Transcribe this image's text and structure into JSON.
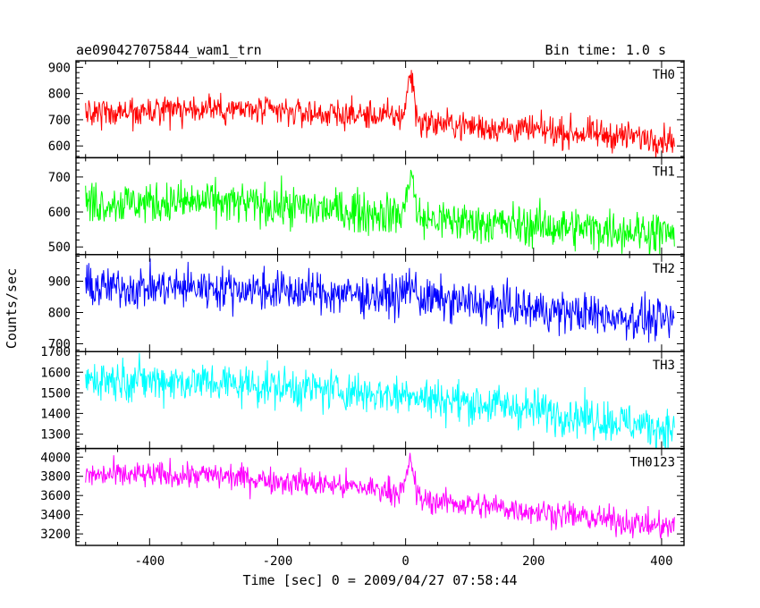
{
  "chart_data": {
    "type": "line",
    "title": "ae090427075844_wam1_trn",
    "subtitle": "Bin time: 1.0 s",
    "xlabel": "Time [sec] 0 = 2009/04/27 07:58:44",
    "ylabel": "Counts/sec",
    "xlim": [
      -515,
      435
    ],
    "xticks": [
      -400,
      -200,
      0,
      200,
      400
    ],
    "x_start": -500,
    "x_end": 420,
    "bin": 1.0,
    "panels": [
      {
        "name": "TH0",
        "color": "#ff0000",
        "ylim": [
          555,
          925
        ],
        "yticks": [
          600,
          700,
          800,
          900
        ],
        "baseline": [
          [
            -500,
            725
          ],
          [
            -300,
            742
          ],
          [
            -100,
            720
          ],
          [
            0,
            712
          ],
          [
            20,
            690
          ],
          [
            200,
            660
          ],
          [
            420,
            625
          ]
        ],
        "noise": 28,
        "peak": {
          "x": 8,
          "height": 170,
          "width": 5
        }
      },
      {
        "name": "TH1",
        "color": "#00ff00",
        "ylim": [
          478,
          755
        ],
        "yticks": [
          500,
          600,
          700
        ],
        "baseline": [
          [
            -500,
            625
          ],
          [
            -300,
            628
          ],
          [
            -100,
            605
          ],
          [
            0,
            590
          ],
          [
            20,
            580
          ],
          [
            200,
            560
          ],
          [
            420,
            540
          ]
        ],
        "noise": 30,
        "peak": {
          "x": 8,
          "height": 130,
          "width": 5
        }
      },
      {
        "name": "TH2",
        "color": "#0000ff",
        "ylim": [
          675,
          985
        ],
        "yticks": [
          700,
          800,
          900
        ],
        "baseline": [
          [
            -500,
            880
          ],
          [
            -300,
            880
          ],
          [
            -100,
            860
          ],
          [
            0,
            850
          ],
          [
            200,
            810
          ],
          [
            420,
            770
          ]
        ],
        "noise": 33,
        "peak": {
          "x": 8,
          "height": 45,
          "width": 6
        }
      },
      {
        "name": "TH3",
        "color": "#00ffff",
        "ylim": [
          1230,
          1700
        ],
        "yticks": [
          1300,
          1400,
          1500,
          1600,
          1700
        ],
        "baseline": [
          [
            -500,
            1570
          ],
          [
            -300,
            1550
          ],
          [
            -100,
            1510
          ],
          [
            0,
            1485
          ],
          [
            200,
            1420
          ],
          [
            420,
            1320
          ]
        ],
        "noise": 50,
        "peak": {
          "x": 8,
          "height": 30,
          "width": 6
        }
      },
      {
        "name": "TH0123",
        "color": "#ff00ff",
        "ylim": [
          3080,
          4090
        ],
        "yticks": [
          3200,
          3400,
          3600,
          3800,
          4000
        ],
        "baseline": [
          [
            -500,
            3810
          ],
          [
            -300,
            3810
          ],
          [
            -100,
            3700
          ],
          [
            0,
            3640
          ],
          [
            20,
            3560
          ],
          [
            200,
            3440
          ],
          [
            420,
            3260
          ]
        ],
        "noise": 70,
        "peak": {
          "x": 8,
          "height": 350,
          "width": 5
        }
      }
    ]
  }
}
